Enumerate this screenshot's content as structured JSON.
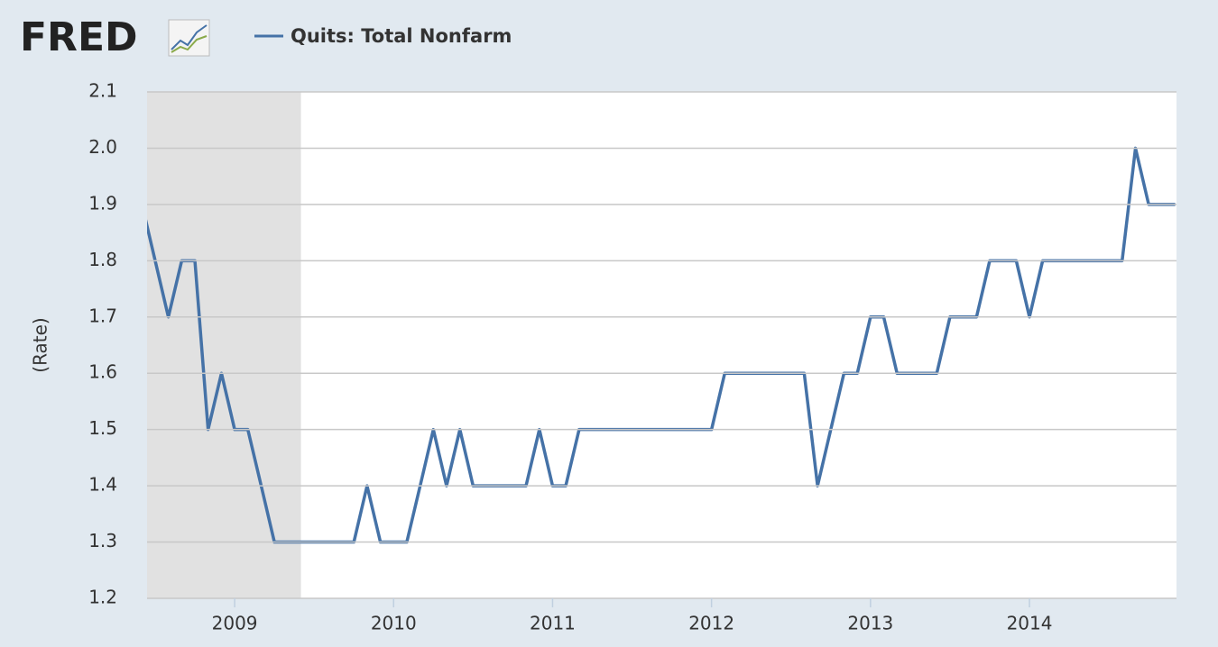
{
  "logo": "FRED",
  "chart_data": {
    "type": "line",
    "y_label": "(Rate)",
    "x": [
      2008.417,
      2008.5,
      2008.583,
      2008.667,
      2008.75,
      2008.833,
      2008.917,
      2009,
      2009.083,
      2009.167,
      2009.25,
      2009.333,
      2009.417,
      2009.5,
      2009.583,
      2009.667,
      2009.75,
      2009.833,
      2009.917,
      2010,
      2010.083,
      2010.167,
      2010.25,
      2010.333,
      2010.417,
      2010.5,
      2010.583,
      2010.667,
      2010.75,
      2010.833,
      2010.917,
      2011,
      2011.083,
      2011.167,
      2011.25,
      2011.333,
      2011.417,
      2011.5,
      2011.583,
      2011.667,
      2011.75,
      2011.833,
      2011.917,
      2012,
      2012.083,
      2012.167,
      2012.25,
      2012.333,
      2012.417,
      2012.5,
      2012.583,
      2012.667,
      2012.75,
      2012.833,
      2012.917,
      2013,
      2013.083,
      2013.167,
      2013.25,
      2013.333,
      2013.417,
      2013.5,
      2013.583,
      2013.667,
      2013.75,
      2013.833,
      2013.917,
      2014,
      2014.083,
      2014.167,
      2014.25,
      2014.333,
      2014.417,
      2014.5,
      2014.583,
      2014.667,
      2014.75,
      2014.833,
      2014.917
    ],
    "series": [
      {
        "name": "Quits: Total Nonfarm",
        "color": "#4572a7",
        "values": [
          1.9,
          1.8,
          1.7,
          1.8,
          1.8,
          1.5,
          1.6,
          1.5,
          1.5,
          1.4,
          1.3,
          1.3,
          1.3,
          1.3,
          1.3,
          1.3,
          1.3,
          1.4,
          1.3,
          1.3,
          1.3,
          1.4,
          1.5,
          1.4,
          1.5,
          1.4,
          1.4,
          1.4,
          1.4,
          1.4,
          1.5,
          1.4,
          1.4,
          1.5,
          1.5,
          1.5,
          1.5,
          1.5,
          1.5,
          1.5,
          1.5,
          1.5,
          1.5,
          1.5,
          1.6,
          1.6,
          1.6,
          1.6,
          1.6,
          1.6,
          1.6,
          1.4,
          1.5,
          1.6,
          1.6,
          1.7,
          1.7,
          1.6,
          1.6,
          1.6,
          1.6,
          1.7,
          1.7,
          1.7,
          1.8,
          1.8,
          1.8,
          1.7,
          1.8,
          1.8,
          1.8,
          1.8,
          1.8,
          1.8,
          1.8,
          2.0,
          1.9,
          1.9,
          1.9
        ]
      }
    ],
    "xlim": [
      2008.449,
      2014.925
    ],
    "xticks": [
      2009,
      2010,
      2011,
      2012,
      2013,
      2014
    ],
    "ylim": [
      1.2,
      2.1
    ],
    "yticks": [
      1.2,
      1.3,
      1.4,
      1.5,
      1.6,
      1.7,
      1.8,
      1.9,
      {
        "value": 2.0,
        "label": "2.0"
      },
      2.1
    ],
    "shaded_region": [
      2007.917,
      2009.417
    ],
    "shade_color": "#e1e1e1",
    "grid": true
  }
}
